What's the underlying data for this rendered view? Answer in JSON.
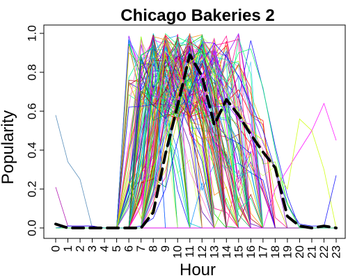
{
  "chart_data": {
    "type": "line",
    "title": "Chicago Bakeries 2",
    "xlabel": "Hour",
    "ylabel": "Popularity",
    "x": [
      0,
      1,
      2,
      3,
      4,
      5,
      6,
      7,
      8,
      9,
      10,
      11,
      12,
      13,
      14,
      15,
      16,
      17,
      18,
      19,
      20,
      21,
      22,
      23
    ],
    "x_ticks": [
      "0",
      "1",
      "2",
      "3",
      "4",
      "5",
      "6",
      "7",
      "8",
      "9",
      "10",
      "11",
      "12",
      "13",
      "14",
      "15",
      "16",
      "17",
      "18",
      "19",
      "20",
      "21",
      "22",
      "23"
    ],
    "xlim": [
      0,
      23
    ],
    "ylim": [
      0,
      1
    ],
    "y_ticks": [
      "0.0",
      "0.2",
      "0.4",
      "0.6",
      "0.8",
      "1.0"
    ],
    "grid": false,
    "legend": "none",
    "series": [
      {
        "style": "dashed",
        "color": "#000000",
        "values": [
          0.02,
          0.0,
          0.0,
          0.0,
          0.0,
          0.0,
          0.0,
          0.0,
          0.08,
          0.38,
          0.63,
          0.89,
          0.78,
          0.53,
          0.66,
          0.58,
          0.48,
          0.39,
          0.31,
          0.06,
          0.01,
          0.0,
          0.01,
          0.0
        ]
      },
      {
        "color": "#4682b4",
        "values": [
          0.58,
          0.34,
          0.25,
          0.0,
          0.0,
          0.0,
          0.0,
          0.0,
          0.0,
          0.0,
          0.0,
          0.0,
          0.0,
          0.0,
          0.0,
          0.0,
          0.0,
          0.0,
          0.0,
          0.0,
          0.0,
          0.0,
          0.0,
          0.0
        ]
      },
      {
        "color": "#aa00aa",
        "values": [
          0.21,
          0.01,
          0.01,
          0.01,
          0.0,
          0.0,
          0.0,
          0.0,
          0.0,
          0.0,
          0.0,
          0.0,
          0.0,
          0.0,
          0.0,
          0.0,
          0.0,
          0.0,
          0.0,
          0.0,
          0.0,
          0.0,
          0.0,
          0.0
        ]
      },
      {
        "color": "#ff00ff",
        "values": [
          0.0,
          0.0,
          0.0,
          0.0,
          0.0,
          0.0,
          0.0,
          0.0,
          0.0,
          0.0,
          0.0,
          0.0,
          0.0,
          0.0,
          0.0,
          0.0,
          0.0,
          0.0,
          0.2,
          0.3,
          0.4,
          0.5,
          0.64,
          0.45
        ]
      },
      {
        "color": "#ccff00",
        "values": [
          0.0,
          0.0,
          0.0,
          0.0,
          0.0,
          0.0,
          0.24,
          0.05,
          0.3,
          0.5,
          0.7,
          0.85,
          0.9,
          0.78,
          0.7,
          0.6,
          0.5,
          0.45,
          0.3,
          0.2,
          0.56,
          0.5,
          0.3,
          0.0
        ]
      },
      {
        "color": "#0000ff",
        "values": [
          0.0,
          0.01,
          0.01,
          0.01,
          0.0,
          0.0,
          0.0,
          0.01,
          0.05,
          0.2,
          0.45,
          0.7,
          0.85,
          0.95,
          0.88,
          0.78,
          0.64,
          0.5,
          0.3,
          0.12,
          0.02,
          0.01,
          0.01,
          0.27
        ]
      },
      {
        "color": "#00ff66",
        "values": [
          0.0,
          0.0,
          0.0,
          0.0,
          0.0,
          0.0,
          0.0,
          0.0,
          0.5,
          0.82,
          0.98,
          0.95,
          0.9,
          0.8,
          0.75,
          0.9,
          0.92,
          0.72,
          0.4,
          0.12,
          0.0,
          0.0,
          0.0,
          0.0
        ]
      }
    ]
  }
}
